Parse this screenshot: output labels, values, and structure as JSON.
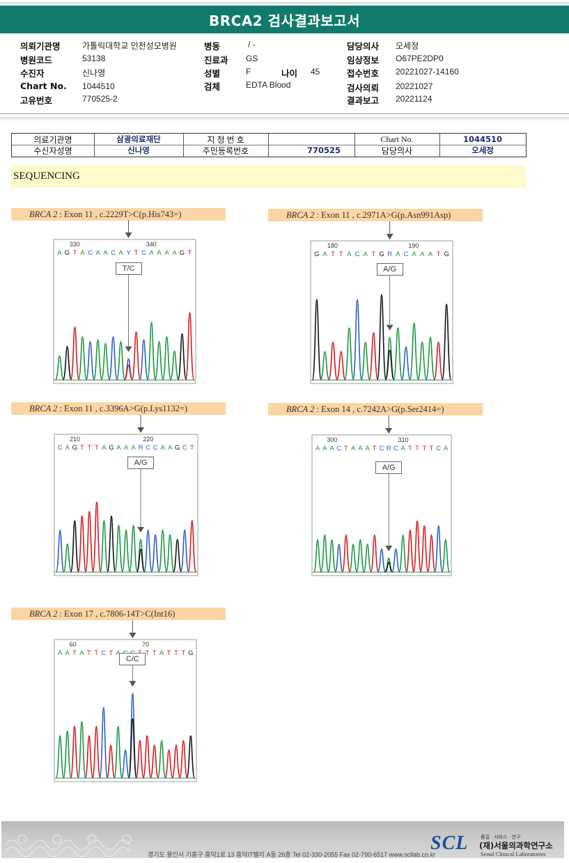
{
  "report": {
    "title": "BRCA2 검사결과보고서"
  },
  "header_info": {
    "institution_label": "의뢰기관명",
    "institution": "가톨릭대학교 인천성모병원",
    "hospital_code_label": "병원코드",
    "hospital_code": "53138",
    "patient_label": "수진자",
    "patient": "신나영",
    "chart_label": "Chart No.",
    "chart_no": "1044510",
    "unique_id_label": "고유번호",
    "unique_id": "770525-2",
    "ward_label": "병동",
    "ward": "/ -",
    "department_label": "진료과",
    "department": "GS",
    "sex_label": "성별",
    "sex": "F",
    "age_label": "나이",
    "age": "45",
    "specimen_label": "검체",
    "specimen": "EDTA Blood",
    "doctor_label": "담당의사",
    "doctor": "오세정",
    "clinical_label": "임상정보",
    "clinical": "O67PE2DP0",
    "receipt_label": "접수번호",
    "receipt": "20221027-14160",
    "request_label": "검사의뢰",
    "request_date": "20221027",
    "result_label": "결과보고",
    "result_date": "20221124"
  },
  "patient_table": {
    "institution_label": "의료기관명",
    "institution": "삼광의료재단",
    "designation_label": "지 정 번 호",
    "designation": "",
    "chart_label": "Chart No.",
    "chart_no": "1044510",
    "recipient_label": "수신자성명",
    "recipient": "신나영",
    "resident_label": "주민등록번호",
    "resident": "770525",
    "doctor_label": "담당의사",
    "doctor": "오세정"
  },
  "section": {
    "title": "SEQUENCING"
  },
  "variants": [
    {
      "gene": "BRCA 2",
      "desc": ": Exon 11 , c.2229T>C(p.His743=)",
      "pos_left": "330",
      "pos_right": "340",
      "sequence": "AGTACAACAYTCAAAAGT",
      "call": "T/C",
      "colors": {
        "A": "#1a9641",
        "G": "#111111",
        "T": "#d7191c",
        "C": "#2b5fc4",
        "Y": "#2b5fc4",
        "R": "#2b5fc4"
      }
    },
    {
      "gene": "BRCA 2",
      "desc": ": Exon 11 , c.2971A>G(p.Asn991Asp)",
      "pos_left": "180",
      "pos_right": "190",
      "sequence": "GATTACATGRACAAATG",
      "call": "A/G"
    },
    {
      "gene": "BRCA 2",
      "desc": ": Exon 11 , c.3396A>G(p.Lys1132=)",
      "pos_left": "210",
      "pos_right": "220",
      "sequence": "CAGTTTAGAAARCCAAGCT",
      "call": "A/G"
    },
    {
      "gene": "BRCA 2",
      "desc": ": Exon 14 , c.7242A>G(p.Ser2414=)",
      "pos_left": "300",
      "pos_right": "310",
      "sequence": "AAACTAAATCRCATTTTCA",
      "call": "A/G"
    },
    {
      "gene": "BRCA 2",
      "desc": ": Exon 17 , c.7806-14T>C(Int16)",
      "pos_left": "60",
      "pos_right": "70",
      "sequence": "AATATTCTACCTTTATTTG",
      "call": "C/C"
    }
  ],
  "footer": {
    "address": "경기도 용인시 기흥구 흥덕1로 13 흥덕IT밸리 A동 26층  Tel 02-330-2055  Fax 02-790-6517  www.scllab.co.kr",
    "tagline": "품질 · 서비스 · 연구",
    "logo": "SCL",
    "org_name": "(재)서울의과학연구소",
    "org_eng": "Seoul Clinical Laboratories"
  }
}
